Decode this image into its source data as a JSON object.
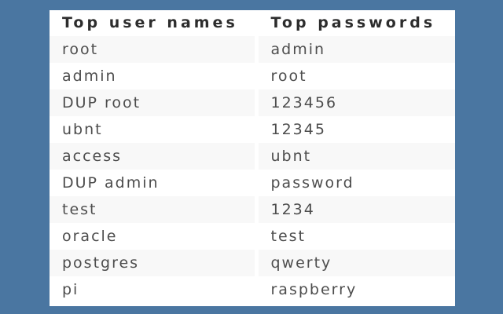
{
  "table": {
    "columns": [
      {
        "label": "Top user names"
      },
      {
        "label": "Top passwords"
      }
    ],
    "rows": [
      {
        "username": "root",
        "password": "admin"
      },
      {
        "username": "admin",
        "password": "root"
      },
      {
        "username": "DUP root",
        "password": "123456"
      },
      {
        "username": "ubnt",
        "password": "12345"
      },
      {
        "username": "access",
        "password": "ubnt"
      },
      {
        "username": "DUP admin",
        "password": "password"
      },
      {
        "username": "test",
        "password": "1234"
      },
      {
        "username": "oracle",
        "password": "test"
      },
      {
        "username": "postgres",
        "password": "qwerty"
      },
      {
        "username": "pi",
        "password": "raspberry"
      }
    ]
  },
  "colors": {
    "page_background": "#4a76a1",
    "panel_background": "#ffffff",
    "row_stripe": "#f8f8f8",
    "header_text": "#2d2d2d",
    "body_text": "#4d4d4d"
  }
}
